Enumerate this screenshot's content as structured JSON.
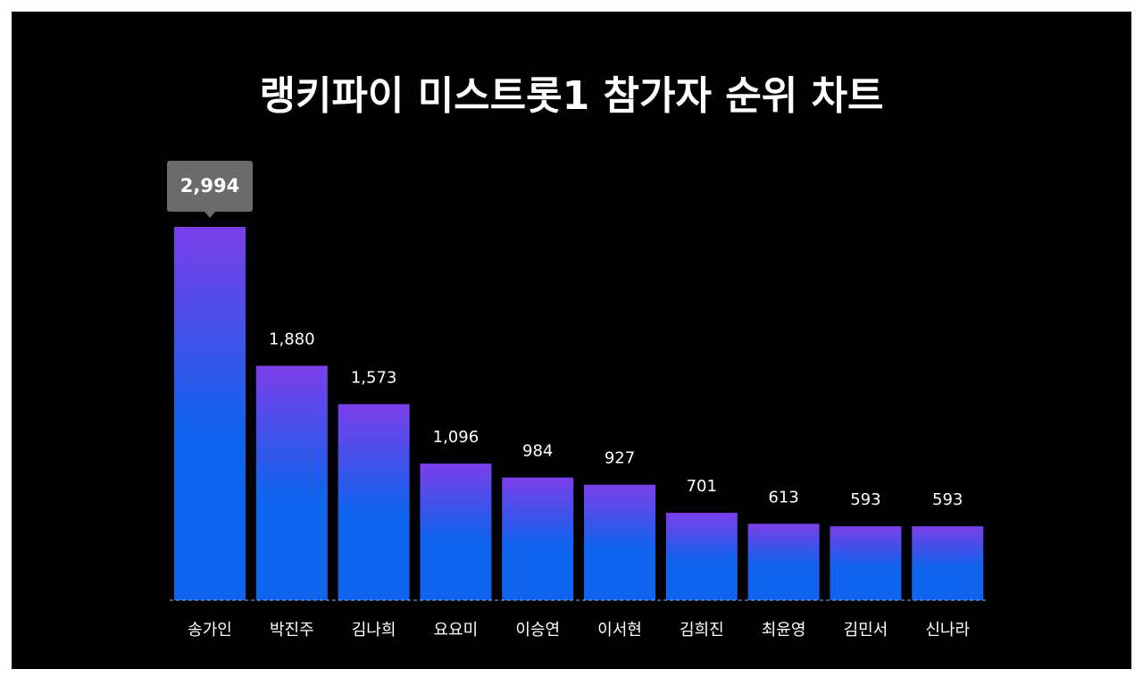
{
  "chart_data": {
    "type": "bar",
    "title": "랭키파이 미스트롯1 참가자 순위 차트",
    "categories": [
      "송가인",
      "박진주",
      "김나희",
      "요요미",
      "이승연",
      "이서현",
      "김희진",
      "최윤영",
      "김민서",
      "신나라"
    ],
    "values": [
      2994,
      1880,
      1573,
      1096,
      984,
      927,
      701,
      613,
      593,
      593
    ],
    "value_labels": [
      "2,994",
      "1,880",
      "1,573",
      "1,096",
      "984",
      "927",
      "701",
      "613",
      "593",
      "593"
    ],
    "highlight_index": 0,
    "ylim": [
      0,
      3000
    ],
    "grid": false,
    "legend": "none",
    "xlabel": "",
    "ylabel": ""
  },
  "colors": {
    "background": "#000000",
    "page": "#ffffff",
    "bar_top": "#7b3fe9",
    "bar_bottom": "#0f63ec",
    "baseline": "#8ab4ff",
    "callout": "#6b6b6b",
    "text": "#ffffff"
  }
}
